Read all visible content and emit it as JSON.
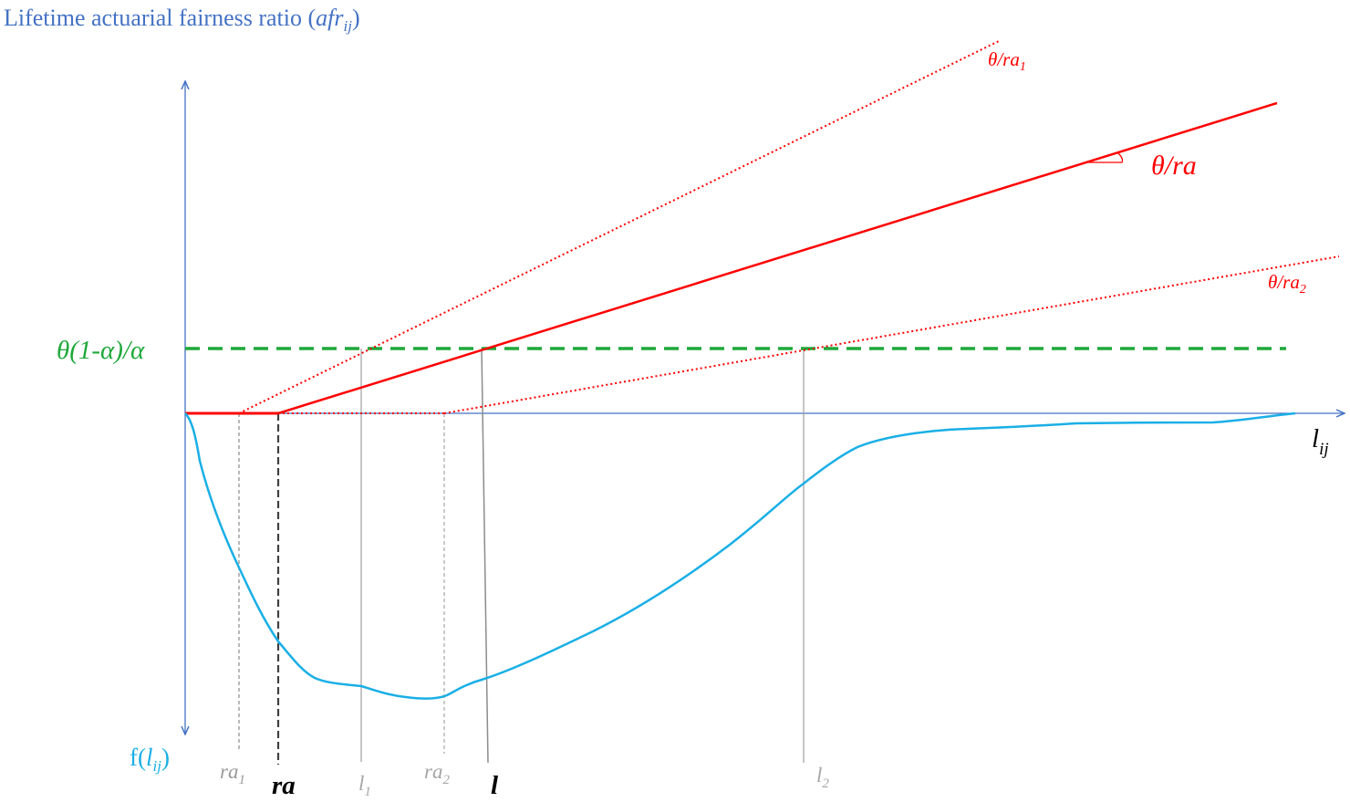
{
  "title": {
    "text": "Lifetime actuarial fairness ratio (",
    "var_base": "afr",
    "var_sub": "ij",
    "close": ")"
  },
  "y_axis_bottom_label": {
    "prefix": "f(",
    "var_base": "l",
    "var_sub": "ij",
    "close": ")"
  },
  "x_axis_label": {
    "base": "l",
    "sub": "ij"
  },
  "threshold_label": "θ(1-α)/α",
  "slope_labels": {
    "main": "θ/ra",
    "upper": {
      "base": "θ/ra",
      "sub": "1"
    },
    "lower": {
      "base": "θ/ra",
      "sub": "2"
    }
  },
  "tick_labels": {
    "ra1": {
      "base": "ra",
      "sub": "1"
    },
    "ra": "ra",
    "l1": {
      "base": "l",
      "sub": "1"
    },
    "ra2": {
      "base": "ra",
      "sub": "2"
    },
    "l": "l",
    "l2": {
      "base": "l",
      "sub": "2"
    }
  },
  "colors": {
    "axis": "#4472C4",
    "title": "#4472C4",
    "curve": "#1AAFE6",
    "threshold": "#1FA83A",
    "slope": "#FF0000",
    "guide": "#9a9a9a",
    "dark": "#000000"
  }
}
